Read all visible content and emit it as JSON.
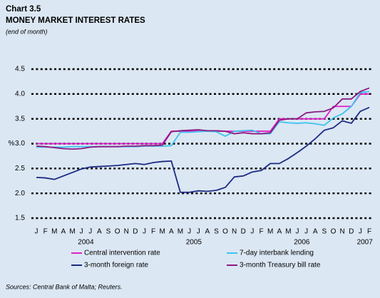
{
  "chart_data": {
    "type": "line",
    "label": "Chart 3.5",
    "title": "MONEY MARKET INTEREST RATES",
    "subtitle": "(end of month)",
    "y_label": "%",
    "source": "Sources: Central Bank of Malta; Reuters.",
    "categories": [
      "J",
      "F",
      "M",
      "A",
      "M",
      "J",
      "J",
      "A",
      "S",
      "O",
      "N",
      "D",
      "J",
      "F",
      "M",
      "A",
      "M",
      "J",
      "J",
      "A",
      "S",
      "O",
      "N",
      "D",
      "J",
      "F",
      "M",
      "A",
      "M",
      "J",
      "J",
      "A",
      "S",
      "O",
      "N",
      "D",
      "J",
      "F"
    ],
    "years": [
      "2004",
      "2005",
      "2006",
      "2007"
    ],
    "ylim": [
      1.5,
      4.5
    ],
    "yticks": [
      {
        "value": 1.5,
        "label": "1.5"
      },
      {
        "value": 2.0,
        "label": "2.0"
      },
      {
        "value": 2.5,
        "label": "2.5"
      },
      {
        "value": 3.0,
        "label": "3.0"
      },
      {
        "value": 3.5,
        "label": "3.5"
      },
      {
        "value": 4.0,
        "label": "4.0"
      },
      {
        "value": 4.5,
        "label": "4.5"
      }
    ],
    "grid": true,
    "series": [
      {
        "name": "Central intervention rate",
        "color": "#e020c8",
        "values": [
          3.0,
          3.0,
          3.0,
          3.0,
          3.0,
          3.0,
          3.0,
          3.0,
          3.0,
          3.0,
          3.0,
          3.0,
          3.0,
          3.0,
          3.0,
          3.25,
          3.25,
          3.25,
          3.25,
          3.25,
          3.25,
          3.25,
          3.25,
          3.25,
          3.25,
          3.25,
          3.25,
          3.5,
          3.5,
          3.5,
          3.5,
          3.5,
          3.5,
          3.75,
          3.75,
          3.75,
          4.0,
          4.0
        ]
      },
      {
        "name": "7-day interbank lending",
        "color": "#3cc4f0",
        "values": [
          2.93,
          2.93,
          2.93,
          2.93,
          2.94,
          2.94,
          2.94,
          2.94,
          2.94,
          2.94,
          2.94,
          2.94,
          2.95,
          2.95,
          2.95,
          2.96,
          3.23,
          3.23,
          3.24,
          3.25,
          3.24,
          3.15,
          3.25,
          3.26,
          3.27,
          3.2,
          3.2,
          3.44,
          3.42,
          3.41,
          3.42,
          3.4,
          3.37,
          3.52,
          3.6,
          3.75,
          4.03,
          4.05
        ]
      },
      {
        "name": "3-month foreign rate",
        "color": "#1c2a82",
        "values": [
          2.32,
          2.31,
          2.28,
          2.35,
          2.42,
          2.49,
          2.53,
          2.54,
          2.55,
          2.56,
          2.58,
          2.6,
          2.58,
          2.62,
          2.64,
          2.65,
          2.02,
          2.02,
          2.05,
          2.04,
          2.06,
          2.12,
          2.33,
          2.35,
          2.43,
          2.46,
          2.6,
          2.6,
          2.7,
          2.82,
          2.95,
          3.1,
          3.27,
          3.32,
          3.46,
          3.41,
          3.65,
          3.73
        ]
      },
      {
        "name": "3-month Treasury bill rate",
        "color": "#8c1a80",
        "values": [
          2.95,
          2.94,
          2.92,
          2.9,
          2.89,
          2.9,
          2.93,
          2.94,
          2.94,
          2.94,
          2.95,
          2.95,
          2.96,
          2.96,
          2.97,
          3.24,
          3.26,
          3.27,
          3.28,
          3.26,
          3.26,
          3.25,
          3.2,
          3.22,
          3.2,
          3.2,
          3.22,
          3.47,
          3.5,
          3.5,
          3.62,
          3.64,
          3.65,
          3.72,
          3.9,
          3.9,
          4.05,
          4.12
        ]
      }
    ]
  }
}
